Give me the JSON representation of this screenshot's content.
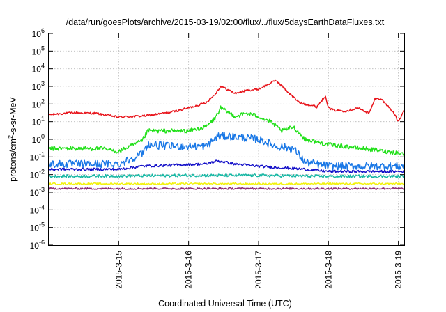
{
  "chart_data": {
    "type": "line",
    "title": "/data/run/goesPlots/archive/2015-03-19/02:00/flux/../flux/5daysEarthDataFluxes.txt",
    "xlabel": "Coordinated Universal Time (UTC)",
    "ylabel": "protons/cm²-s-sr-MeV",
    "ylabel_parts": {
      "prefix": "protons/cm",
      "sup": "2",
      "suffix": "-s-sr-MeV"
    },
    "yscale": "log",
    "ylim": [
      1e-06,
      1000000.0
    ],
    "xlim": [
      "2015-03-14",
      "2015-03-19 02:00"
    ],
    "x_ticks": [
      {
        "value": "2015-03-15",
        "label": "2015-3-15"
      },
      {
        "value": "2015-03-16",
        "label": "2015-3-16"
      },
      {
        "value": "2015-03-17",
        "label": "2015-3-17"
      },
      {
        "value": "2015-03-18",
        "label": "2015-3-18"
      },
      {
        "value": "2015-03-19",
        "label": "2015-3-19"
      }
    ],
    "y_ticks": [
      {
        "exp": -6,
        "base": "10",
        "sup": "-6"
      },
      {
        "exp": -5,
        "base": "10",
        "sup": "-5"
      },
      {
        "exp": -4,
        "base": "10",
        "sup": "-4"
      },
      {
        "exp": -3,
        "base": "10",
        "sup": "-3"
      },
      {
        "exp": -2,
        "base": "10",
        "sup": "-2"
      },
      {
        "exp": -1,
        "base": "10",
        "sup": "-1"
      },
      {
        "exp": 0,
        "base": "10",
        "sup": "0"
      },
      {
        "exp": 1,
        "base": "10",
        "sup": "1"
      },
      {
        "exp": 2,
        "base": "10",
        "sup": "2"
      },
      {
        "exp": 3,
        "base": "10",
        "sup": "3"
      },
      {
        "exp": 4,
        "base": "10",
        "sup": "4"
      },
      {
        "exp": 5,
        "base": "10",
        "sup": "5"
      },
      {
        "exp": 6,
        "base": "10",
        "sup": "6"
      }
    ],
    "grid": true,
    "legend": "none",
    "series": [
      {
        "color": "#e8141b",
        "noise": 0.06,
        "points": [
          [
            "2015-03-14 00:00",
            25
          ],
          [
            "2015-03-14 08:00",
            32
          ],
          [
            "2015-03-14 16:00",
            30
          ],
          [
            "2015-03-15 00:00",
            18
          ],
          [
            "2015-03-15 10:00",
            22
          ],
          [
            "2015-03-15 18:00",
            35
          ],
          [
            "2015-03-16 00:00",
            60
          ],
          [
            "2015-03-16 06:00",
            120
          ],
          [
            "2015-03-16 09:00",
            350
          ],
          [
            "2015-03-16 11:00",
            1000
          ],
          [
            "2015-03-16 13:00",
            700
          ],
          [
            "2015-03-16 16:00",
            400
          ],
          [
            "2015-03-16 20:00",
            600
          ],
          [
            "2015-03-17 00:00",
            700
          ],
          [
            "2015-03-17 06:00",
            2200
          ],
          [
            "2015-03-17 10:00",
            500
          ],
          [
            "2015-03-17 14:00",
            120
          ],
          [
            "2015-03-17 20:00",
            70
          ],
          [
            "2015-03-17 23:00",
            300
          ],
          [
            "2015-03-18 00:00",
            60
          ],
          [
            "2015-03-18 02:00",
            45
          ],
          [
            "2015-03-18 06:00",
            40
          ],
          [
            "2015-03-18 10:00",
            60
          ],
          [
            "2015-03-18 14:00",
            30
          ],
          [
            "2015-03-18 16:00",
            200
          ],
          [
            "2015-03-18 18:00",
            200
          ],
          [
            "2015-03-18 22:00",
            40
          ],
          [
            "2015-03-19 00:00",
            10
          ],
          [
            "2015-03-19 02:00",
            40
          ]
        ]
      },
      {
        "color": "#22e01a",
        "noise": 0.12,
        "points": [
          [
            "2015-03-14 00:00",
            0.3
          ],
          [
            "2015-03-14 18:00",
            0.3
          ],
          [
            "2015-03-15 00:00",
            0.2
          ],
          [
            "2015-03-15 08:00",
            0.8
          ],
          [
            "2015-03-15 10:00",
            3
          ],
          [
            "2015-03-15 18:00",
            3
          ],
          [
            "2015-03-16 00:00",
            3
          ],
          [
            "2015-03-16 06:00",
            5
          ],
          [
            "2015-03-16 09:00",
            15
          ],
          [
            "2015-03-16 11:00",
            60
          ],
          [
            "2015-03-16 16:00",
            20
          ],
          [
            "2015-03-16 20:00",
            30
          ],
          [
            "2015-03-17 00:00",
            20
          ],
          [
            "2015-03-17 04:00",
            10
          ],
          [
            "2015-03-17 08:00",
            3
          ],
          [
            "2015-03-17 12:00",
            5
          ],
          [
            "2015-03-17 16:00",
            1
          ],
          [
            "2015-03-18 00:00",
            0.5
          ],
          [
            "2015-03-18 12:00",
            0.3
          ],
          [
            "2015-03-19 02:00",
            0.15
          ]
        ]
      },
      {
        "color": "#1a78e6",
        "noise": 0.22,
        "points": [
          [
            "2015-03-14 00:00",
            0.04
          ],
          [
            "2015-03-15 00:00",
            0.04
          ],
          [
            "2015-03-15 08:00",
            0.15
          ],
          [
            "2015-03-15 10:00",
            0.5
          ],
          [
            "2015-03-15 18:00",
            0.4
          ],
          [
            "2015-03-16 06:00",
            0.4
          ],
          [
            "2015-03-16 10:00",
            1.5
          ],
          [
            "2015-03-16 14:00",
            1.5
          ],
          [
            "2015-03-17 00:00",
            1
          ],
          [
            "2015-03-17 06:00",
            0.4
          ],
          [
            "2015-03-17 12:00",
            0.3
          ],
          [
            "2015-03-17 16:00",
            0.05
          ],
          [
            "2015-03-18 00:00",
            0.03
          ],
          [
            "2015-03-19 02:00",
            0.03
          ]
        ]
      },
      {
        "color": "#1410c8",
        "noise": 0.07,
        "points": [
          [
            "2015-03-14 00:00",
            0.02
          ],
          [
            "2015-03-15 00:00",
            0.02
          ],
          [
            "2015-03-15 08:00",
            0.03
          ],
          [
            "2015-03-16 06:00",
            0.04
          ],
          [
            "2015-03-16 10:00",
            0.06
          ],
          [
            "2015-03-16 16:00",
            0.04
          ],
          [
            "2015-03-17 00:00",
            0.03
          ],
          [
            "2015-03-17 16:00",
            0.02
          ],
          [
            "2015-03-18 00:00",
            0.015
          ],
          [
            "2015-03-19 02:00",
            0.015
          ]
        ]
      },
      {
        "color": "#17b8a4",
        "noise": 0.08,
        "points": [
          [
            "2015-03-14 00:00",
            0.008
          ],
          [
            "2015-03-16 00:00",
            0.009
          ],
          [
            "2015-03-17 00:00",
            0.009
          ],
          [
            "2015-03-18 00:00",
            0.008
          ],
          [
            "2015-03-19 02:00",
            0.008
          ]
        ]
      },
      {
        "color": "#f2f20c",
        "noise": 0.05,
        "points": [
          [
            "2015-03-14 00:00",
            0.003
          ],
          [
            "2015-03-19 02:00",
            0.003
          ]
        ]
      },
      {
        "color": "#8c2a73",
        "noise": 0.05,
        "points": [
          [
            "2015-03-14 00:00",
            0.0016
          ],
          [
            "2015-03-19 02:00",
            0.0016
          ]
        ]
      }
    ]
  }
}
